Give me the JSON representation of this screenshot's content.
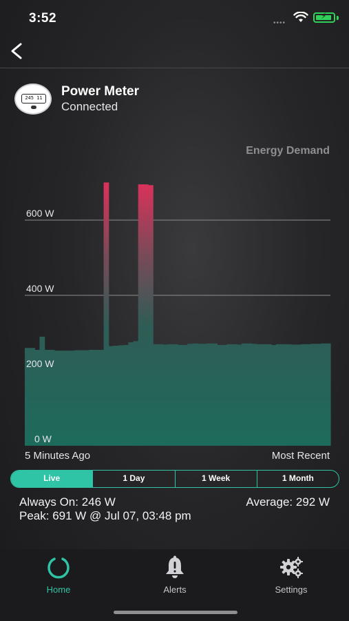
{
  "status_bar": {
    "time": "3:52",
    "signal_dots": "••••"
  },
  "device": {
    "name": "Power Meter",
    "status": "Connected",
    "meter_reading": "245 11"
  },
  "chart_data": {
    "type": "bar",
    "title": "Energy Demand",
    "y_unit": "W",
    "ylim": [
      0,
      700
    ],
    "y_ticks": [
      "0 W",
      "200 W",
      "400 W",
      "600 W"
    ],
    "y_tick_values": [
      0,
      200,
      400,
      600
    ],
    "x_labels": {
      "start": "5 Minutes Ago",
      "end": "Most Recent"
    },
    "values": [
      260,
      260,
      255,
      290,
      255,
      255,
      253,
      253,
      253,
      253,
      254,
      254,
      254,
      255,
      255,
      255,
      700,
      265,
      266,
      267,
      268,
      275,
      278,
      695,
      695,
      693,
      270,
      270,
      269,
      270,
      270,
      268,
      268,
      271,
      272,
      271,
      271,
      272,
      272,
      268,
      268,
      270,
      270,
      269,
      272,
      272,
      271,
      270,
      270,
      270,
      268,
      270,
      270,
      270,
      269,
      269,
      270,
      270,
      271,
      271,
      272,
      272
    ]
  },
  "ranges": {
    "live": "Live",
    "day": "1 Day",
    "week": "1 Week",
    "month": "1 Month"
  },
  "stats": {
    "always_on": "Always On: 246 W",
    "average": "Average: 292  W",
    "peak": "Peak: 691 W @ Jul 07, 03:48 pm"
  },
  "tabs": {
    "home": "Home",
    "alerts": "Alerts",
    "settings": "Settings"
  },
  "colors": {
    "accent": "#2ec4a5",
    "bar_peak": "#e0305a",
    "bar_base": "#1f6e5e"
  }
}
